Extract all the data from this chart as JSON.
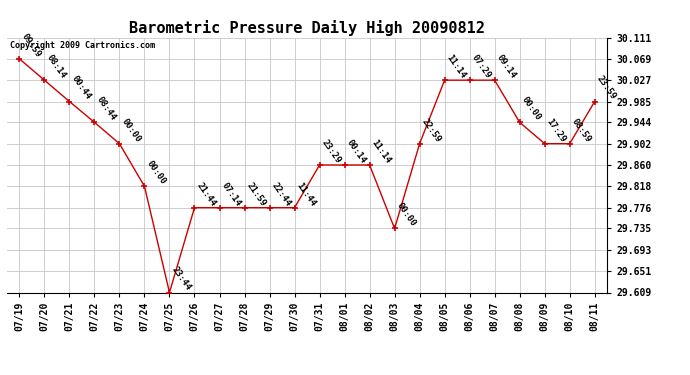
{
  "title": "Barometric Pressure Daily High 20090812",
  "copyright": "Copyright 2009 Cartronics.com",
  "x_labels": [
    "07/19",
    "07/20",
    "07/21",
    "07/22",
    "07/23",
    "07/24",
    "07/25",
    "07/26",
    "07/27",
    "07/28",
    "07/29",
    "07/30",
    "07/31",
    "08/01",
    "08/02",
    "08/03",
    "08/04",
    "08/05",
    "08/06",
    "08/07",
    "08/08",
    "08/09",
    "08/10",
    "08/11"
  ],
  "y_values": [
    30.069,
    30.027,
    29.985,
    29.944,
    29.902,
    29.818,
    29.609,
    29.776,
    29.776,
    29.776,
    29.776,
    29.776,
    29.86,
    29.86,
    29.86,
    29.735,
    29.902,
    30.027,
    30.027,
    30.027,
    29.944,
    29.902,
    29.902,
    29.985
  ],
  "time_labels": [
    "09:59",
    "08:14",
    "00:44",
    "08:44",
    "00:00",
    "00:00",
    "23:44",
    "21:44",
    "07:14",
    "21:59",
    "22:44",
    "11:44",
    "23:29",
    "00:14",
    "11:14",
    "00:00",
    "22:59",
    "11:14",
    "07:29",
    "09:14",
    "00:00",
    "17:29",
    "08:59",
    "23:59"
  ],
  "ylim_min": 29.609,
  "ylim_max": 30.111,
  "yticks": [
    29.609,
    29.651,
    29.693,
    29.735,
    29.776,
    29.818,
    29.86,
    29.902,
    29.944,
    29.985,
    30.027,
    30.069,
    30.111
  ],
  "line_color": "#cc0000",
  "marker_color": "#cc0000",
  "bg_color": "#ffffff",
  "grid_color": "#c8c8c8",
  "title_fontsize": 11,
  "annotation_fontsize": 6.5,
  "tick_fontsize": 7,
  "figwidth": 6.9,
  "figheight": 3.75,
  "dpi": 100
}
